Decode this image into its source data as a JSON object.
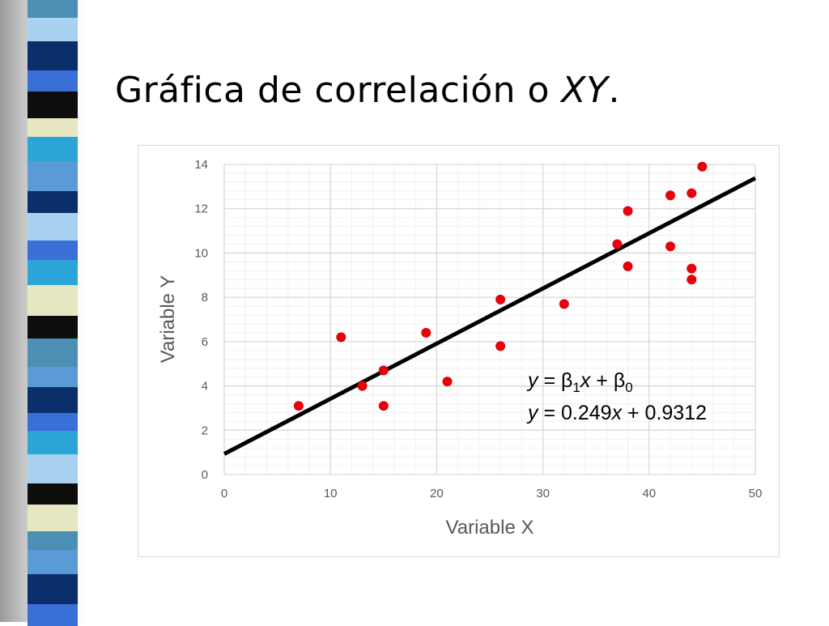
{
  "slide": {
    "title_plain": "Gráfica de correlación o ",
    "title_italic": "XY",
    "title_end": "."
  },
  "colors": {
    "point": "#e8000b",
    "regression_line": "#000000",
    "major_grid": "#d9d9d9",
    "minor_grid": "#f0f0f0",
    "axis_text": "#595959",
    "stripe_palette": [
      "#3a6fd8",
      "#0a2f6b",
      "#4b8fb5",
      "#e6e6c0",
      "#0d0d0d",
      "#2ba4d8",
      "#a8d2f0",
      "#5b9bd5"
    ]
  },
  "chart_data": {
    "type": "scatter",
    "xlabel": "Variable X",
    "ylabel": "Variable Y",
    "xlim": [
      0,
      50
    ],
    "ylim": [
      0,
      14
    ],
    "x_ticks": [
      0,
      10,
      20,
      30,
      40,
      50
    ],
    "y_ticks": [
      0,
      2,
      4,
      6,
      8,
      10,
      12,
      14
    ],
    "grid": true,
    "minor_grid": true,
    "points": [
      {
        "x": 7,
        "y": 3.1
      },
      {
        "x": 11,
        "y": 6.2
      },
      {
        "x": 13,
        "y": 4.0
      },
      {
        "x": 15,
        "y": 3.1
      },
      {
        "x": 15,
        "y": 4.7
      },
      {
        "x": 19,
        "y": 6.4
      },
      {
        "x": 21,
        "y": 4.2
      },
      {
        "x": 26,
        "y": 5.8
      },
      {
        "x": 26,
        "y": 7.9
      },
      {
        "x": 32,
        "y": 7.7
      },
      {
        "x": 37,
        "y": 10.4
      },
      {
        "x": 38,
        "y": 11.9
      },
      {
        "x": 38,
        "y": 9.4
      },
      {
        "x": 42,
        "y": 12.6
      },
      {
        "x": 42,
        "y": 10.3
      },
      {
        "x": 44,
        "y": 12.7
      },
      {
        "x": 44,
        "y": 9.3
      },
      {
        "x": 44,
        "y": 8.8
      },
      {
        "x": 45,
        "y": 13.9
      }
    ],
    "regression": {
      "slope": 0.249,
      "intercept": 0.9312,
      "x_range": [
        0,
        50
      ]
    },
    "annotations": {
      "general_form": {
        "y": "y",
        "eq": " = β",
        "sub1": "1",
        "x": "x",
        "plus": " + β",
        "sub0": "0"
      },
      "fitted": {
        "y": "y",
        "eq": " = 0.249",
        "x": "x",
        "rest": " + 0.9312"
      }
    }
  }
}
